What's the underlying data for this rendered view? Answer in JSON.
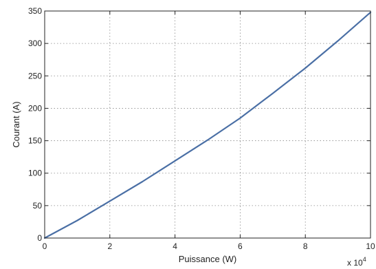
{
  "chart_data": {
    "type": "line",
    "title": "",
    "xlabel": "Puissance (W)",
    "ylabel": "Courant (A)",
    "x_multiplier_label": "x 10",
    "x_multiplier_exponent": "4",
    "xlim": [
      0,
      100000
    ],
    "ylim": [
      0,
      350
    ],
    "x_ticks": [
      0,
      20000,
      40000,
      60000,
      80000,
      100000
    ],
    "x_tick_labels": [
      "0",
      "2",
      "4",
      "6",
      "8",
      "10"
    ],
    "y_ticks": [
      0,
      50,
      100,
      150,
      200,
      250,
      300,
      350
    ],
    "y_tick_labels": [
      "0",
      "50",
      "100",
      "150",
      "200",
      "250",
      "300",
      "350"
    ],
    "grid": true,
    "series": [
      {
        "color": "#4a6fa5",
        "x": [
          0,
          10000,
          20000,
          30000,
          40000,
          50000,
          60000,
          70000,
          80000,
          90000,
          100000
        ],
        "y": [
          0,
          27,
          57,
          87,
          119,
          151,
          185,
          223,
          262,
          304,
          348
        ]
      }
    ]
  }
}
